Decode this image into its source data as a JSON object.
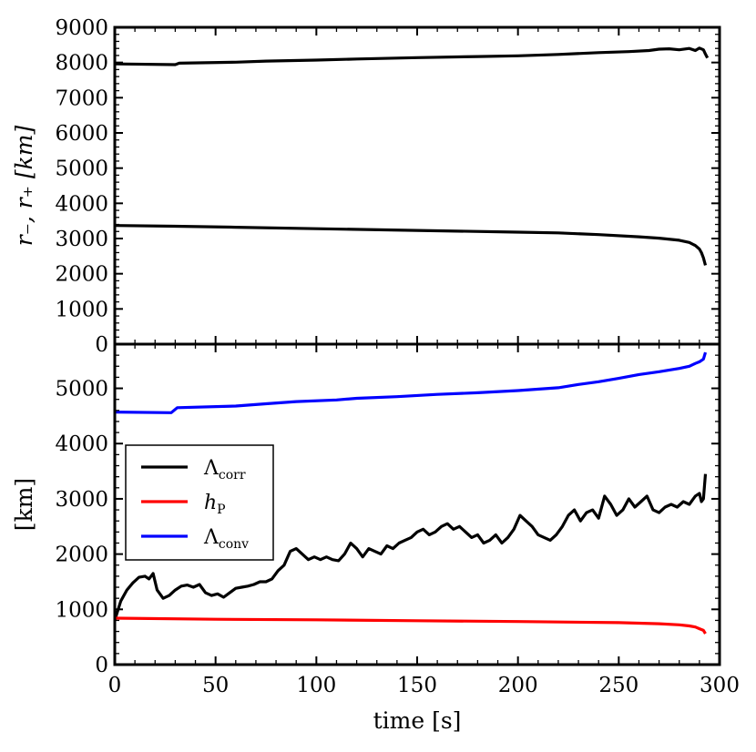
{
  "chart_data": [
    {
      "type": "line",
      "panel": "top",
      "ylabel": "r₋, r₊ [km]",
      "xlabel": "",
      "xlim": [
        0,
        300
      ],
      "ylim": [
        0,
        9000
      ],
      "yticks": [
        0,
        1000,
        2000,
        3000,
        4000,
        5000,
        6000,
        7000,
        8000,
        9000
      ],
      "xticks": [
        0,
        50,
        100,
        150,
        200,
        250,
        300
      ],
      "xtick_labels_shown": false,
      "series": [
        {
          "color": "#000000",
          "x": [
            0,
            30,
            32,
            60,
            75,
            100,
            120,
            150,
            180,
            200,
            220,
            240,
            255,
            265,
            270,
            275,
            280,
            285,
            288,
            290,
            292,
            293,
            294
          ],
          "y": [
            7960,
            7940,
            7980,
            8010,
            8040,
            8070,
            8100,
            8140,
            8170,
            8190,
            8230,
            8280,
            8310,
            8340,
            8380,
            8390,
            8360,
            8400,
            8340,
            8410,
            8360,
            8240,
            8130
          ]
        },
        {
          "color": "#000000",
          "x": [
            0,
            30,
            60,
            100,
            150,
            200,
            220,
            240,
            260,
            270,
            280,
            285,
            288,
            290,
            291,
            292,
            293
          ],
          "y": [
            3370,
            3350,
            3320,
            3280,
            3230,
            3180,
            3160,
            3110,
            3050,
            3010,
            2950,
            2890,
            2800,
            2700,
            2600,
            2450,
            2240
          ]
        }
      ]
    },
    {
      "type": "line",
      "panel": "bottom",
      "ylabel": "[km]",
      "xlabel": "time [s]",
      "xlim": [
        0,
        300
      ],
      "ylim": [
        0,
        5800
      ],
      "yticks": [
        0,
        1000,
        2000,
        3000,
        4000,
        5000
      ],
      "xticks": [
        0,
        50,
        100,
        150,
        200,
        250,
        300
      ],
      "legend": "center-left",
      "series": [
        {
          "color": "#000000",
          "x": [
            0,
            3,
            6,
            9,
            12,
            15,
            17,
            19,
            21,
            24,
            27,
            30,
            33,
            36,
            39,
            42,
            45,
            48,
            51,
            54,
            57,
            60,
            63,
            66,
            69,
            72,
            75,
            78,
            81,
            84,
            87,
            90,
            93,
            96,
            99,
            102,
            105,
            108,
            111,
            114,
            117,
            120,
            123,
            126,
            129,
            132,
            135,
            138,
            141,
            144,
            147,
            150,
            153,
            156,
            159,
            162,
            165,
            168,
            171,
            174,
            177,
            180,
            183,
            186,
            189,
            192,
            195,
            198,
            201,
            204,
            207,
            210,
            213,
            216,
            219,
            222,
            225,
            228,
            231,
            234,
            237,
            240,
            243,
            246,
            249,
            252,
            255,
            258,
            261,
            264,
            267,
            270,
            273,
            276,
            279,
            282,
            285,
            288,
            290,
            291,
            292,
            293
          ],
          "y": [
            800,
            1150,
            1350,
            1480,
            1580,
            1600,
            1550,
            1650,
            1350,
            1200,
            1250,
            1350,
            1420,
            1440,
            1400,
            1450,
            1300,
            1250,
            1280,
            1220,
            1300,
            1380,
            1400,
            1420,
            1450,
            1500,
            1500,
            1550,
            1700,
            1800,
            2050,
            2100,
            2000,
            1900,
            1950,
            1900,
            1950,
            1900,
            1880,
            2000,
            2200,
            2100,
            1950,
            2100,
            2050,
            2000,
            2150,
            2100,
            2200,
            2250,
            2300,
            2400,
            2450,
            2350,
            2400,
            2500,
            2550,
            2450,
            2500,
            2400,
            2300,
            2350,
            2200,
            2250,
            2350,
            2200,
            2300,
            2450,
            2700,
            2600,
            2500,
            2350,
            2300,
            2250,
            2350,
            2500,
            2700,
            2800,
            2600,
            2750,
            2800,
            2650,
            3050,
            2900,
            2700,
            2800,
            3000,
            2850,
            2950,
            3050,
            2800,
            2750,
            2850,
            2900,
            2850,
            2950,
            2900,
            3050,
            3100,
            2950,
            3000,
            3450
          ]
        },
        {
          "color": "#ff0000",
          "x": [
            0,
            50,
            100,
            150,
            200,
            250,
            270,
            280,
            285,
            288,
            290,
            292,
            293
          ],
          "y": [
            840,
            820,
            810,
            795,
            780,
            760,
            740,
            720,
            700,
            680,
            650,
            620,
            560
          ]
        },
        {
          "color": "#0000ff",
          "x": [
            0,
            28,
            31,
            60,
            75,
            90,
            110,
            120,
            140,
            160,
            180,
            200,
            220,
            230,
            240,
            250,
            260,
            270,
            280,
            285,
            288,
            290,
            292,
            293
          ],
          "y": [
            4570,
            4560,
            4650,
            4680,
            4720,
            4760,
            4790,
            4820,
            4850,
            4890,
            4920,
            4960,
            5010,
            5070,
            5120,
            5180,
            5250,
            5300,
            5360,
            5400,
            5450,
            5480,
            5530,
            5650
          ]
        }
      ],
      "legend_entries": [
        {
          "base": "Λ",
          "sub": "corr",
          "color": "#000000"
        },
        {
          "base": "h",
          "sub": "P",
          "color": "#ff0000"
        },
        {
          "base": "Λ",
          "sub": "conv",
          "color": "#0000ff"
        }
      ]
    }
  ]
}
